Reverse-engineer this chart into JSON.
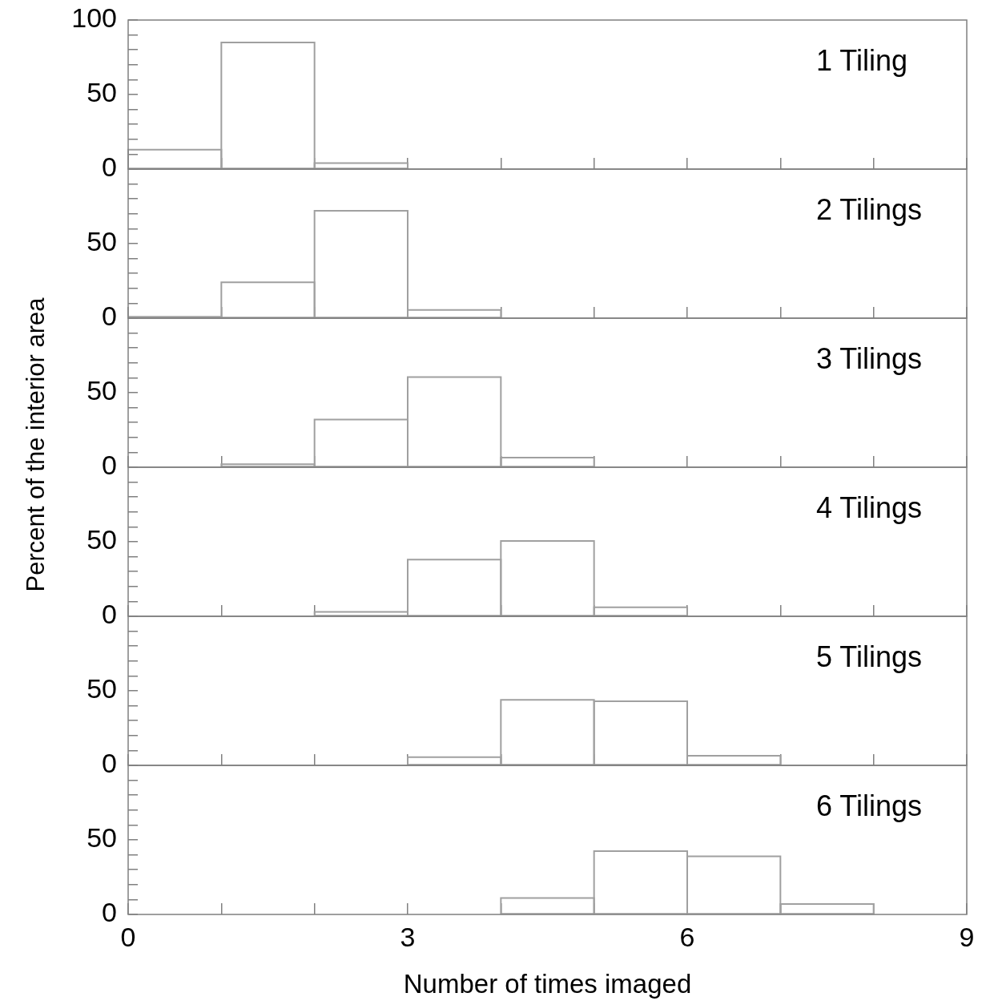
{
  "chart_data": [
    {
      "type": "histogram",
      "bins": [
        0,
        1,
        2,
        3,
        4,
        5,
        6,
        7,
        8,
        9
      ],
      "values": [
        13,
        85,
        4,
        0,
        0,
        0,
        0,
        0,
        0
      ],
      "color": "#a0a0a0",
      "xlim": [
        0,
        9
      ],
      "ylim": [
        0,
        100
      ],
      "xticks": [
        0,
        {
          "value": 1,
          "label": null
        },
        {
          "value": 2,
          "label": null
        },
        3,
        {
          "value": 4,
          "label": null
        },
        {
          "value": 5,
          "label": null
        },
        6,
        {
          "value": 7,
          "label": null
        },
        {
          "value": 8,
          "label": null
        },
        9
      ],
      "yticks": [
        0,
        {
          "value": 10,
          "label": null
        },
        {
          "value": 20,
          "label": null
        },
        {
          "value": 30,
          "label": null
        },
        {
          "value": 40,
          "label": null
        },
        50,
        {
          "value": 60,
          "label": null
        },
        {
          "value": 70,
          "label": null
        },
        {
          "value": 80,
          "label": null
        },
        {
          "value": 90,
          "label": null
        },
        100
      ],
      "tick_labels": "y",
      "annotations": [
        "1 Tiling"
      ]
    },
    {
      "type": "histogram",
      "bins": [
        0,
        1,
        2,
        3,
        4,
        5,
        6,
        7,
        8,
        9
      ],
      "values": [
        1,
        24,
        72,
        5.5,
        0,
        0,
        0,
        0,
        0
      ],
      "color": "#a0a0a0",
      "xlim": [
        0,
        9
      ],
      "ylim": [
        0,
        100
      ],
      "xticks": [
        0,
        {
          "value": 1,
          "label": null
        },
        {
          "value": 2,
          "label": null
        },
        3,
        {
          "value": 4,
          "label": null
        },
        {
          "value": 5,
          "label": null
        },
        6,
        {
          "value": 7,
          "label": null
        },
        {
          "value": 8,
          "label": null
        },
        9
      ],
      "yticks": [
        0,
        {
          "value": 10,
          "label": null
        },
        {
          "value": 20,
          "label": null
        },
        {
          "value": 30,
          "label": null
        },
        {
          "value": 40,
          "label": null
        },
        50,
        {
          "value": 60,
          "label": null
        },
        {
          "value": 70,
          "label": null
        },
        {
          "value": 80,
          "label": null
        },
        {
          "value": 90,
          "label": null
        }
      ],
      "tick_labels": "y",
      "annotations": [
        "2 Tilings"
      ]
    },
    {
      "type": "histogram",
      "bins": [
        0,
        1,
        2,
        3,
        4,
        5,
        6,
        7,
        8,
        9
      ],
      "values": [
        0,
        2,
        32,
        60.5,
        6.5,
        0,
        0,
        0,
        0
      ],
      "color": "#a0a0a0",
      "xlim": [
        0,
        9
      ],
      "ylim": [
        0,
        100
      ],
      "xticks": [
        0,
        {
          "value": 1,
          "label": null
        },
        {
          "value": 2,
          "label": null
        },
        3,
        {
          "value": 4,
          "label": null
        },
        {
          "value": 5,
          "label": null
        },
        6,
        {
          "value": 7,
          "label": null
        },
        {
          "value": 8,
          "label": null
        },
        9
      ],
      "yticks": [
        0,
        {
          "value": 10,
          "label": null
        },
        {
          "value": 20,
          "label": null
        },
        {
          "value": 30,
          "label": null
        },
        {
          "value": 40,
          "label": null
        },
        50,
        {
          "value": 60,
          "label": null
        },
        {
          "value": 70,
          "label": null
        },
        {
          "value": 80,
          "label": null
        },
        {
          "value": 90,
          "label": null
        }
      ],
      "tick_labels": "y",
      "ylabel": "Percent of the interior area",
      "annotations": [
        "3 Tilings"
      ]
    },
    {
      "type": "histogram",
      "bins": [
        0,
        1,
        2,
        3,
        4,
        5,
        6,
        7,
        8,
        9
      ],
      "values": [
        0,
        0,
        3,
        38,
        50.5,
        6,
        0,
        0,
        0
      ],
      "color": "#a0a0a0",
      "xlim": [
        0,
        9
      ],
      "ylim": [
        0,
        100
      ],
      "xticks": [
        0,
        {
          "value": 1,
          "label": null
        },
        {
          "value": 2,
          "label": null
        },
        3,
        {
          "value": 4,
          "label": null
        },
        {
          "value": 5,
          "label": null
        },
        6,
        {
          "value": 7,
          "label": null
        },
        {
          "value": 8,
          "label": null
        },
        9
      ],
      "yticks": [
        0,
        {
          "value": 10,
          "label": null
        },
        {
          "value": 20,
          "label": null
        },
        {
          "value": 30,
          "label": null
        },
        {
          "value": 40,
          "label": null
        },
        50,
        {
          "value": 60,
          "label": null
        },
        {
          "value": 70,
          "label": null
        },
        {
          "value": 80,
          "label": null
        },
        {
          "value": 90,
          "label": null
        }
      ],
      "tick_labels": "y",
      "annotations": [
        "4 Tilings"
      ]
    },
    {
      "type": "histogram",
      "bins": [
        0,
        1,
        2,
        3,
        4,
        5,
        6,
        7,
        8,
        9
      ],
      "values": [
        0,
        0,
        0,
        5.5,
        44,
        43,
        6.5,
        0,
        0
      ],
      "color": "#a0a0a0",
      "xlim": [
        0,
        9
      ],
      "ylim": [
        0,
        100
      ],
      "xticks": [
        0,
        {
          "value": 1,
          "label": null
        },
        {
          "value": 2,
          "label": null
        },
        3,
        {
          "value": 4,
          "label": null
        },
        {
          "value": 5,
          "label": null
        },
        6,
        {
          "value": 7,
          "label": null
        },
        {
          "value": 8,
          "label": null
        },
        9
      ],
      "yticks": [
        0,
        {
          "value": 10,
          "label": null
        },
        {
          "value": 20,
          "label": null
        },
        {
          "value": 30,
          "label": null
        },
        {
          "value": 40,
          "label": null
        },
        50,
        {
          "value": 60,
          "label": null
        },
        {
          "value": 70,
          "label": null
        },
        {
          "value": 80,
          "label": null
        },
        {
          "value": 90,
          "label": null
        }
      ],
      "tick_labels": "y",
      "annotations": [
        "5 Tilings"
      ]
    },
    {
      "type": "histogram",
      "bins": [
        0,
        1,
        2,
        3,
        4,
        5,
        6,
        7,
        8,
        9
      ],
      "values": [
        0,
        0,
        0,
        0,
        11,
        42.5,
        39,
        7,
        0
      ],
      "color": "#a0a0a0",
      "xlim": [
        0,
        9
      ],
      "ylim": [
        0,
        100
      ],
      "xticks": [
        0,
        {
          "value": 1,
          "label": null
        },
        {
          "value": 2,
          "label": null
        },
        3,
        {
          "value": 4,
          "label": null
        },
        {
          "value": 5,
          "label": null
        },
        6,
        {
          "value": 7,
          "label": null
        },
        {
          "value": 8,
          "label": null
        },
        9
      ],
      "yticks": [
        0,
        {
          "value": 10,
          "label": null
        },
        {
          "value": 20,
          "label": null
        },
        {
          "value": 30,
          "label": null
        },
        {
          "value": 40,
          "label": null
        },
        50,
        {
          "value": 60,
          "label": null
        },
        {
          "value": 70,
          "label": null
        },
        {
          "value": 80,
          "label": null
        },
        {
          "value": 90,
          "label": null
        }
      ],
      "xlabel": "Number of times imaged",
      "annotations": [
        "6 Tilings"
      ]
    }
  ]
}
